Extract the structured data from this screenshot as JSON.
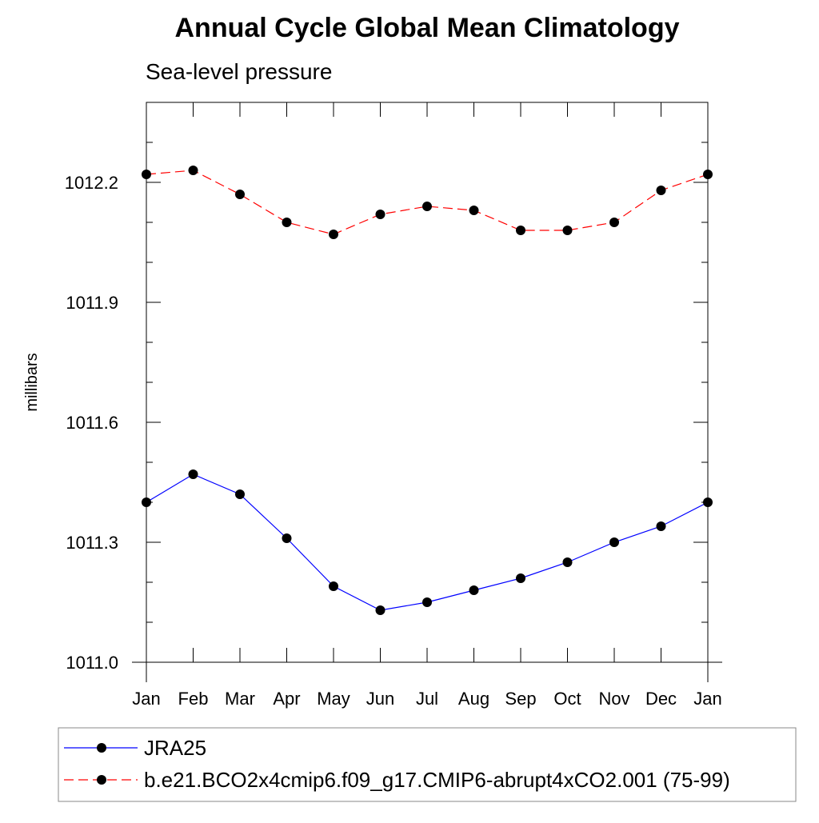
{
  "chart_data": {
    "type": "line",
    "title": "Annual Cycle Global Mean Climatology",
    "subtitle": "Sea-level pressure",
    "xlabel": "",
    "ylabel": "millibars",
    "categories": [
      "Jan",
      "Feb",
      "Mar",
      "Apr",
      "May",
      "Jun",
      "Jul",
      "Aug",
      "Sep",
      "Oct",
      "Nov",
      "Dec",
      "Jan"
    ],
    "ylim": [
      1011.0,
      1012.4
    ],
    "yticks": [
      "1011.0",
      "1011.3",
      "1011.6",
      "1011.9",
      "1012.2"
    ],
    "ytick_values": [
      1011.0,
      1011.3,
      1011.6,
      1011.9,
      1012.2
    ],
    "series": [
      {
        "name": "JRA25",
        "color": "#0000ff",
        "line_style": "solid",
        "marker": "filled-circle",
        "values": [
          1011.4,
          1011.47,
          1011.42,
          1011.31,
          1011.19,
          1011.13,
          1011.15,
          1011.18,
          1011.21,
          1011.25,
          1011.3,
          1011.34,
          1011.4
        ]
      },
      {
        "name": "b.e21.BCO2x4cmip6.f09_g17.CMIP6-abrupt4xCO2.001 (75-99)",
        "color": "#ff0000",
        "line_style": "dashed",
        "marker": "filled-circle",
        "values": [
          1012.22,
          1012.23,
          1012.17,
          1012.1,
          1012.07,
          1012.12,
          1012.14,
          1012.13,
          1012.08,
          1012.08,
          1012.1,
          1012.18,
          1012.22
        ]
      }
    ],
    "legend_position": "bottom"
  }
}
